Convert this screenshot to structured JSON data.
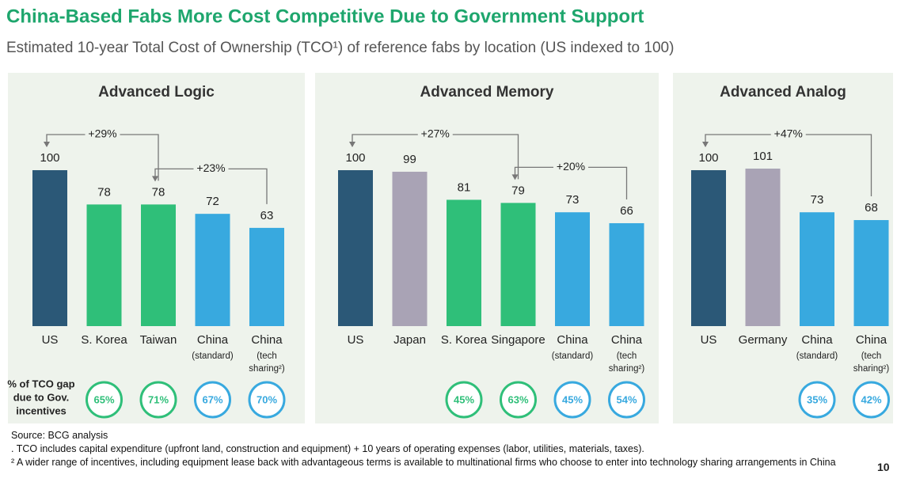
{
  "title": "China-Based Fabs More Cost Competitive Due to Government Support",
  "subtitle": "Estimated 10-year Total Cost of Ownership (TCO¹) of reference fabs by location (US indexed to 100)",
  "incentive_label": [
    "% of TCO gap",
    "due to Gov.",
    "incentives"
  ],
  "chart_data": [
    {
      "type": "bar",
      "title": "Advanced Logic",
      "categories": [
        "US",
        "S. Korea",
        "Taiwan",
        "China",
        "China"
      ],
      "category_notes": [
        null,
        null,
        null,
        [
          "(standard)"
        ],
        [
          "(tech",
          "sharing²)"
        ]
      ],
      "values": [
        100,
        78,
        78,
        72,
        63
      ],
      "colors": [
        "#2b5877",
        "#2fbf79",
        "#2fbf79",
        "#38a9df",
        "#38a9df"
      ],
      "annotations": [
        {
          "text": "+29%",
          "from": 0,
          "to": 2
        },
        {
          "text": "+23%",
          "from": 2,
          "to": 4
        }
      ],
      "incentive_values": [
        null,
        65,
        71,
        67,
        70
      ],
      "incentive_labels": [
        null,
        "65%",
        "71%",
        "67%",
        "70%"
      ]
    },
    {
      "type": "bar",
      "title": "Advanced Memory",
      "categories": [
        "US",
        "Japan",
        "S. Korea",
        "Singapore",
        "China",
        "China"
      ],
      "category_notes": [
        null,
        null,
        null,
        null,
        [
          "(standard)"
        ],
        [
          "(tech",
          "sharing²)"
        ]
      ],
      "values": [
        100,
        99,
        81,
        79,
        73,
        66
      ],
      "colors": [
        "#2b5877",
        "#a9a3b5",
        "#2fbf79",
        "#2fbf79",
        "#38a9df",
        "#38a9df"
      ],
      "annotations": [
        {
          "text": "+27%",
          "from": 0,
          "to": 3
        },
        {
          "text": "+20%",
          "from": 3,
          "to": 5
        }
      ],
      "incentive_values": [
        null,
        null,
        45,
        63,
        45,
        54
      ],
      "incentive_labels": [
        null,
        null,
        "45%",
        "63%",
        "45%",
        "54%"
      ]
    },
    {
      "type": "bar",
      "title": "Advanced Analog",
      "categories": [
        "US",
        "Germany",
        "China",
        "China"
      ],
      "category_notes": [
        null,
        null,
        [
          "(standard)"
        ],
        [
          "(tech",
          "sharing²)"
        ]
      ],
      "values": [
        100,
        101,
        73,
        68
      ],
      "colors": [
        "#2b5877",
        "#a9a3b5",
        "#38a9df",
        "#38a9df"
      ],
      "annotations": [
        {
          "text": "+47%",
          "from": 0,
          "to": 3
        }
      ],
      "incentive_values": [
        null,
        null,
        35,
        42
      ],
      "incentive_labels": [
        null,
        null,
        "35%",
        "42%"
      ]
    }
  ],
  "footnotes": [
    "Source: BCG analysis",
    ". TCO includes capital expenditure (upfront land, construction and equipment) + 10 years of operating expenses (labor, utilities, materials, taxes).",
    "² A wider range of incentives, including equipment lease back with advantageous terms is available to multinational firms who choose to enter into technology sharing arrangements in China"
  ],
  "page_number": "10"
}
